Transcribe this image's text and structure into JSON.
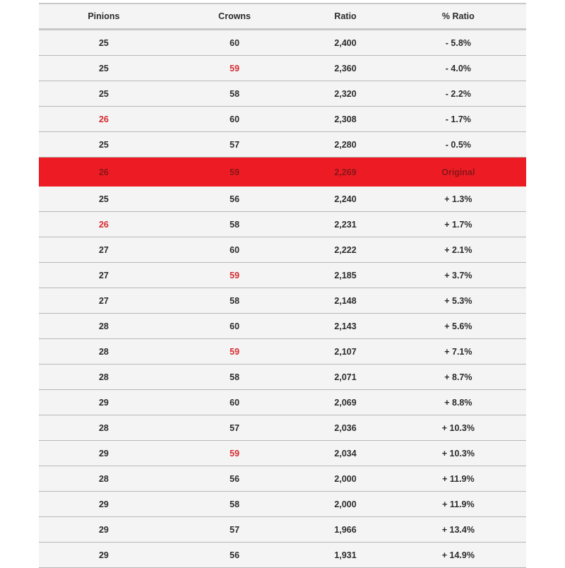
{
  "colors": {
    "highlight": "#ed1c24",
    "changed_value": "#d42a2f"
  },
  "table": {
    "headers": [
      "Pinions",
      "Crowns",
      "Ratio",
      "% Ratio"
    ],
    "rows": [
      {
        "pinions": "25",
        "crowns": "60",
        "ratio": "2,400",
        "pct": "- 5.8%",
        "pinions_changed": false,
        "crowns_changed": false
      },
      {
        "pinions": "25",
        "crowns": "59",
        "ratio": "2,360",
        "pct": "- 4.0%",
        "pinions_changed": false,
        "crowns_changed": true
      },
      {
        "pinions": "25",
        "crowns": "58",
        "ratio": "2,320",
        "pct": "- 2.2%",
        "pinions_changed": false,
        "crowns_changed": false
      },
      {
        "pinions": "26",
        "crowns": "60",
        "ratio": "2,308",
        "pct": "- 1.7%",
        "pinions_changed": true,
        "crowns_changed": false
      },
      {
        "pinions": "25",
        "crowns": "57",
        "ratio": "2,280",
        "pct": "- 0.5%",
        "pinions_changed": false,
        "crowns_changed": false
      },
      {
        "pinions": "26",
        "crowns": "59",
        "ratio": "2,269",
        "pct": "Original",
        "highlight": true,
        "pinions_changed": false,
        "crowns_changed": false
      },
      {
        "pinions": "25",
        "crowns": "56",
        "ratio": "2,240",
        "pct": "+ 1.3%",
        "pinions_changed": false,
        "crowns_changed": false
      },
      {
        "pinions": "26",
        "crowns": "58",
        "ratio": "2,231",
        "pct": "+ 1.7%",
        "pinions_changed": true,
        "crowns_changed": false
      },
      {
        "pinions": "27",
        "crowns": "60",
        "ratio": "2,222",
        "pct": "+ 2.1%",
        "pinions_changed": false,
        "crowns_changed": false
      },
      {
        "pinions": "27",
        "crowns": "59",
        "ratio": "2,185",
        "pct": "+ 3.7%",
        "pinions_changed": false,
        "crowns_changed": true
      },
      {
        "pinions": "27",
        "crowns": "58",
        "ratio": "2,148",
        "pct": "+ 5.3%",
        "pinions_changed": false,
        "crowns_changed": false
      },
      {
        "pinions": "28",
        "crowns": "60",
        "ratio": "2,143",
        "pct": "+ 5.6%",
        "pinions_changed": false,
        "crowns_changed": false
      },
      {
        "pinions": "28",
        "crowns": "59",
        "ratio": "2,107",
        "pct": "+ 7.1%",
        "pinions_changed": false,
        "crowns_changed": true
      },
      {
        "pinions": "28",
        "crowns": "58",
        "ratio": "2,071",
        "pct": "+ 8.7%",
        "pinions_changed": false,
        "crowns_changed": false
      },
      {
        "pinions": "29",
        "crowns": "60",
        "ratio": "2,069",
        "pct": "+ 8.8%",
        "pinions_changed": false,
        "crowns_changed": false
      },
      {
        "pinions": "28",
        "crowns": "57",
        "ratio": "2,036",
        "pct": "+ 10.3%",
        "pinions_changed": false,
        "crowns_changed": false
      },
      {
        "pinions": "29",
        "crowns": "59",
        "ratio": "2,034",
        "pct": "+ 10.3%",
        "pinions_changed": false,
        "crowns_changed": true
      },
      {
        "pinions": "28",
        "crowns": "56",
        "ratio": "2,000",
        "pct": "+ 11.9%",
        "pinions_changed": false,
        "crowns_changed": false
      },
      {
        "pinions": "29",
        "crowns": "58",
        "ratio": "2,000",
        "pct": "+ 11.9%",
        "pinions_changed": false,
        "crowns_changed": false
      },
      {
        "pinions": "29",
        "crowns": "57",
        "ratio": "1,966",
        "pct": "+ 13.4%",
        "pinions_changed": false,
        "crowns_changed": false
      },
      {
        "pinions": "29",
        "crowns": "56",
        "ratio": "1,931",
        "pct": "+ 14.9%",
        "pinions_changed": false,
        "crowns_changed": false
      }
    ]
  }
}
